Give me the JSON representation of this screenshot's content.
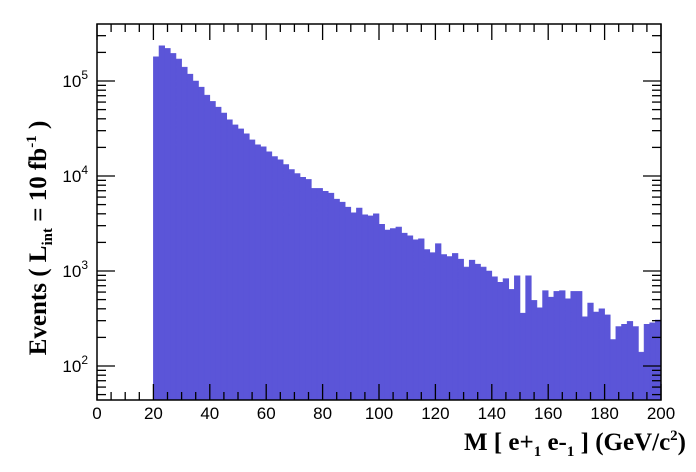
{
  "chart_data": {
    "type": "bar",
    "histogram": true,
    "title": "",
    "xlabel": "M [ e+_1 e-_1 ] (GeV/c^2)",
    "ylabel": "Events ( L_int = 10 fb^-1 )",
    "xlim": [
      0,
      200
    ],
    "ylim": [
      45,
      400000
    ],
    "yscale": "log",
    "grid": false,
    "legend": null,
    "fill_color": "#5b55d8",
    "bin_width": 2,
    "x_ticks": [
      "0",
      "20",
      "40",
      "60",
      "80",
      "100",
      "120",
      "140",
      "160",
      "180",
      "200"
    ],
    "y_ticks": [
      "10^2",
      "10^3",
      "10^4",
      "10^5"
    ],
    "bin_lows": [
      20,
      22,
      24,
      26,
      28,
      30,
      32,
      34,
      36,
      38,
      40,
      42,
      44,
      46,
      48,
      50,
      52,
      54,
      56,
      58,
      60,
      62,
      64,
      66,
      68,
      70,
      72,
      74,
      76,
      78,
      80,
      82,
      84,
      86,
      88,
      90,
      92,
      94,
      96,
      98,
      100,
      102,
      104,
      106,
      108,
      110,
      112,
      114,
      116,
      118,
      120,
      122,
      124,
      126,
      128,
      130,
      132,
      134,
      136,
      138,
      140,
      142,
      144,
      146,
      148,
      150,
      152,
      154,
      156,
      158,
      160,
      162,
      164,
      166,
      168,
      170,
      172,
      174,
      176,
      178,
      180,
      182,
      184,
      186,
      188,
      190,
      192,
      194,
      196,
      198
    ],
    "values": [
      180000,
      235000,
      220000,
      195000,
      170000,
      140000,
      118000,
      100000,
      86000,
      71000,
      61000,
      53000,
      46000,
      39000,
      34500,
      31300,
      27800,
      24000,
      21300,
      20300,
      18000,
      16000,
      14800,
      13200,
      11700,
      10600,
      9700,
      9200,
      7400,
      7400,
      6900,
      6600,
      5700,
      5300,
      4700,
      4100,
      4600,
      3900,
      3800,
      4000,
      3100,
      2700,
      2800,
      2900,
      2500,
      2350,
      2130,
      2180,
      1680,
      1560,
      1940,
      1490,
      1420,
      1530,
      1330,
      1100,
      1300,
      1180,
      1100,
      1000,
      870,
      760,
      830,
      640,
      890,
      360,
      890,
      490,
      410,
      620,
      530,
      610,
      620,
      510,
      610,
      610,
      330,
      460,
      370,
      400,
      345,
      190,
      260,
      275,
      295,
      260,
      140,
      275,
      285,
      305
    ]
  },
  "axes": {
    "x_title_main": "M [ e+",
    "x_title_sub1": "1",
    "x_title_mid": " e-",
    "x_title_sub2": "1",
    "x_title_end": " ] (GeV/c",
    "x_title_sup": "2",
    "x_title_close": ")",
    "y_title_main": "Events  ( L",
    "y_title_sub": "int",
    "y_title_mid": " = 10 fb",
    "y_title_sup": "-1",
    "y_title_close": " )"
  }
}
